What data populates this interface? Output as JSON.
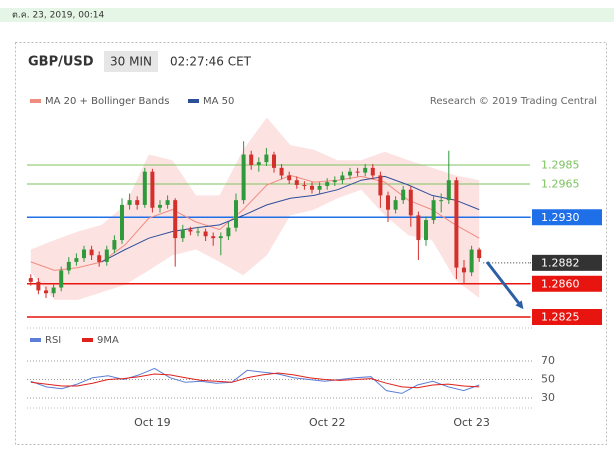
{
  "timestamp": "ต.ค. 23, 2019, 00:14",
  "chart_data": [
    {
      "type": "candlestick",
      "title": "GBP/USD",
      "timeframe": "30 MIN",
      "time": "02:27:46 CET",
      "attribution": "Research © 2019 Trading Central",
      "categories": [
        null,
        null,
        null,
        null,
        null,
        null,
        null,
        null,
        null,
        null,
        null,
        null,
        null,
        null,
        null,
        null,
        "Oct 19",
        null,
        null,
        null,
        null,
        null,
        null,
        null,
        null,
        null,
        null,
        null,
        null,
        null,
        null,
        null,
        null,
        null,
        null,
        null,
        null,
        null,
        null,
        "Oct 22",
        null,
        null,
        null,
        null,
        null,
        null,
        null,
        null,
        null,
        null,
        null,
        null,
        null,
        null,
        null,
        null,
        null,
        null,
        "Oct 23",
        null
      ],
      "ohlc": [
        [
          1.2866,
          1.287,
          1.2858,
          1.2862
        ],
        [
          1.2862,
          1.2866,
          1.2849,
          1.2853
        ],
        [
          1.2853,
          1.2857,
          1.2845,
          1.285
        ],
        [
          1.285,
          1.286,
          1.2846,
          1.2856
        ],
        [
          1.2856,
          1.2878,
          1.2852,
          1.2874
        ],
        [
          1.2874,
          1.2888,
          1.287,
          1.2883
        ],
        [
          1.2883,
          1.2892,
          1.2879,
          1.2887
        ],
        [
          1.2887,
          1.29,
          1.2883,
          1.2896
        ],
        [
          1.2896,
          1.29,
          1.2885,
          1.289
        ],
        [
          1.289,
          1.2894,
          1.2878,
          1.2883
        ],
        [
          1.2883,
          1.29,
          1.2879,
          1.2896
        ],
        [
          1.2896,
          1.2911,
          1.2892,
          1.2906
        ],
        [
          1.2906,
          1.295,
          1.2902,
          1.2943
        ],
        [
          1.2943,
          1.2955,
          1.2938,
          1.2948
        ],
        [
          1.2948,
          1.2952,
          1.2938,
          1.2943
        ],
        [
          1.2943,
          1.2982,
          1.294,
          1.2978
        ],
        [
          1.2978,
          1.2981,
          1.2935,
          1.294
        ],
        [
          1.294,
          1.2948,
          1.2935,
          1.2943
        ],
        [
          1.2943,
          1.2953,
          1.2939,
          1.2948
        ],
        [
          1.2948,
          1.295,
          1.2878,
          1.2908
        ],
        [
          1.2908,
          1.2922,
          1.2904,
          1.2917
        ],
        [
          1.2917,
          1.292,
          1.2911,
          1.2915
        ],
        [
          1.2915,
          1.292,
          1.291,
          1.2915
        ],
        [
          1.2915,
          1.2918,
          1.2905,
          1.291
        ],
        [
          1.291,
          1.2914,
          1.29,
          1.2908
        ],
        [
          1.2908,
          1.2914,
          1.289,
          1.291
        ],
        [
          1.291,
          1.2925,
          1.2906,
          1.2919
        ],
        [
          1.2919,
          1.2955,
          1.2915,
          1.2948
        ],
        [
          1.2948,
          1.301,
          1.2944,
          1.2996
        ],
        [
          1.2996,
          1.3,
          1.298,
          1.2985
        ],
        [
          1.2985,
          1.2993,
          1.2978,
          1.2988
        ],
        [
          1.2988,
          1.3003,
          1.2984,
          1.2996
        ],
        [
          1.2996,
          1.2999,
          1.2977,
          1.2982
        ],
        [
          1.2982,
          1.2986,
          1.297,
          1.2974
        ],
        [
          1.2974,
          1.2978,
          1.2965,
          1.2969
        ],
        [
          1.2969,
          1.2973,
          1.296,
          1.2964
        ],
        [
          1.2964,
          1.2968,
          1.2959,
          1.2963
        ],
        [
          1.2963,
          1.2967,
          1.2955,
          1.2959
        ],
        [
          1.2959,
          1.2967,
          1.2955,
          1.2963
        ],
        [
          1.2963,
          1.2971,
          1.2959,
          1.2967
        ],
        [
          1.2967,
          1.2973,
          1.2963,
          1.2969
        ],
        [
          1.2969,
          1.2978,
          1.2965,
          1.2974
        ],
        [
          1.2974,
          1.2982,
          1.297,
          1.2978
        ],
        [
          1.2978,
          1.2982,
          1.2973,
          1.2977
        ],
        [
          1.2977,
          1.2986,
          1.2973,
          1.2982
        ],
        [
          1.2982,
          1.2986,
          1.297,
          1.2974
        ],
        [
          1.2974,
          1.2978,
          1.294,
          1.2953
        ],
        [
          1.2953,
          1.2957,
          1.2925,
          1.2938
        ],
        [
          1.2938,
          1.2952,
          1.2934,
          1.2948
        ],
        [
          1.2948,
          1.2963,
          1.2944,
          1.2959
        ],
        [
          1.2959,
          1.2963,
          1.292,
          1.2932
        ],
        [
          1.2932,
          1.2936,
          1.2885,
          1.2906
        ],
        [
          1.2906,
          1.2931,
          1.29,
          1.2927
        ],
        [
          1.2927,
          1.2952,
          1.2923,
          1.2948
        ],
        [
          1.2948,
          1.2955,
          1.2935,
          1.2948
        ],
        [
          1.2948,
          1.3,
          1.2944,
          1.2969
        ],
        [
          1.2969,
          1.2972,
          1.2865,
          1.2877
        ],
        [
          1.2877,
          1.2885,
          1.286,
          1.2872
        ],
        [
          1.2872,
          1.29,
          1.2868,
          1.2896
        ],
        [
          1.2896,
          1.2898,
          1.2883,
          1.2887
        ]
      ],
      "up_color": "#2e9a3c",
      "down_color": "#d3302c",
      "ylim": [
        1.2815,
        1.3045
      ],
      "overlays": [
        {
          "name": "MA 20 + Bollinger Bands",
          "color": "#f08c80",
          "band_color": "#fde2e2",
          "upper": [
            1.2896,
            1.2906,
            1.2915,
            1.2922,
            1.2943,
            1.2996,
            1.299,
            1.2953,
            1.2953,
            1.3001,
            1.3035,
            1.3006,
            1.3001,
            1.299,
            1.299,
            1.2999,
            1.299,
            1.2982,
            1.2974,
            1.2969
          ],
          "lower": [
            1.2872,
            1.2843,
            1.2843,
            1.2851,
            1.2859,
            1.2874,
            1.289,
            1.2896,
            1.2883,
            1.2869,
            1.289,
            1.2932,
            1.2938,
            1.295,
            1.2959,
            1.2932,
            1.2911,
            1.2906,
            1.2864,
            1.2845
          ],
          "values": [
            1.2883,
            1.2874,
            1.2877,
            1.2883,
            1.2901,
            1.2929,
            1.2938,
            1.2925,
            1.2917,
            1.2938,
            1.2964,
            1.2974,
            1.2967,
            1.2969,
            1.2973,
            1.2967,
            1.2948,
            1.2938,
            1.2922,
            1.2908
          ]
        },
        {
          "name": "MA 50",
          "color": "#2d4f9a",
          "values": [
            null,
            null,
            null,
            1.2883,
            1.2896,
            1.2908,
            1.2915,
            1.2919,
            1.2922,
            1.2932,
            1.2943,
            1.295,
            1.2953,
            1.2959,
            1.2969,
            1.2973,
            1.2964,
            1.2953,
            1.2948,
            1.2938
          ]
        }
      ],
      "levels": [
        {
          "value": 1.2985,
          "label": "1.2985",
          "color": "#7cc35e",
          "line": "solid",
          "box": false
        },
        {
          "value": 1.2965,
          "label": "1.2965",
          "color": "#7cc35e",
          "line": "solid",
          "box": false
        },
        {
          "value": 1.293,
          "label": "1.2930",
          "color": "#1e6fe8",
          "line": "solid",
          "box": true
        },
        {
          "value": 1.2882,
          "label": "1.2882",
          "color": "#333333",
          "line": "dotted",
          "box": true
        },
        {
          "value": 1.286,
          "label": "1.2860",
          "color": "#e8140f",
          "line": "solid",
          "box": true
        },
        {
          "value": 1.2825,
          "label": "1.2825",
          "color": "#e8140f",
          "line": "solid",
          "box": true
        }
      ]
    },
    {
      "type": "line",
      "series": [
        {
          "name": "RSI",
          "color": "#5b7fd6",
          "values": [
            48,
            42,
            40,
            45,
            52,
            54,
            50,
            55,
            62,
            52,
            47,
            48,
            46,
            47,
            60,
            58,
            56,
            52,
            50,
            48,
            50,
            52,
            53,
            38,
            35,
            44,
            48,
            42,
            38,
            44
          ]
        },
        {
          "name": "9MA",
          "color": "#e0201a",
          "values": [
            47,
            45,
            43,
            43,
            46,
            50,
            51,
            53,
            56,
            55,
            52,
            49,
            48,
            47,
            52,
            55,
            57,
            55,
            52,
            50,
            49,
            50,
            51,
            46,
            42,
            41,
            44,
            45,
            43,
            42
          ]
        }
      ],
      "ylim": [
        25,
        75
      ],
      "yticks": [
        30,
        50,
        70
      ],
      "grid": true
    }
  ]
}
